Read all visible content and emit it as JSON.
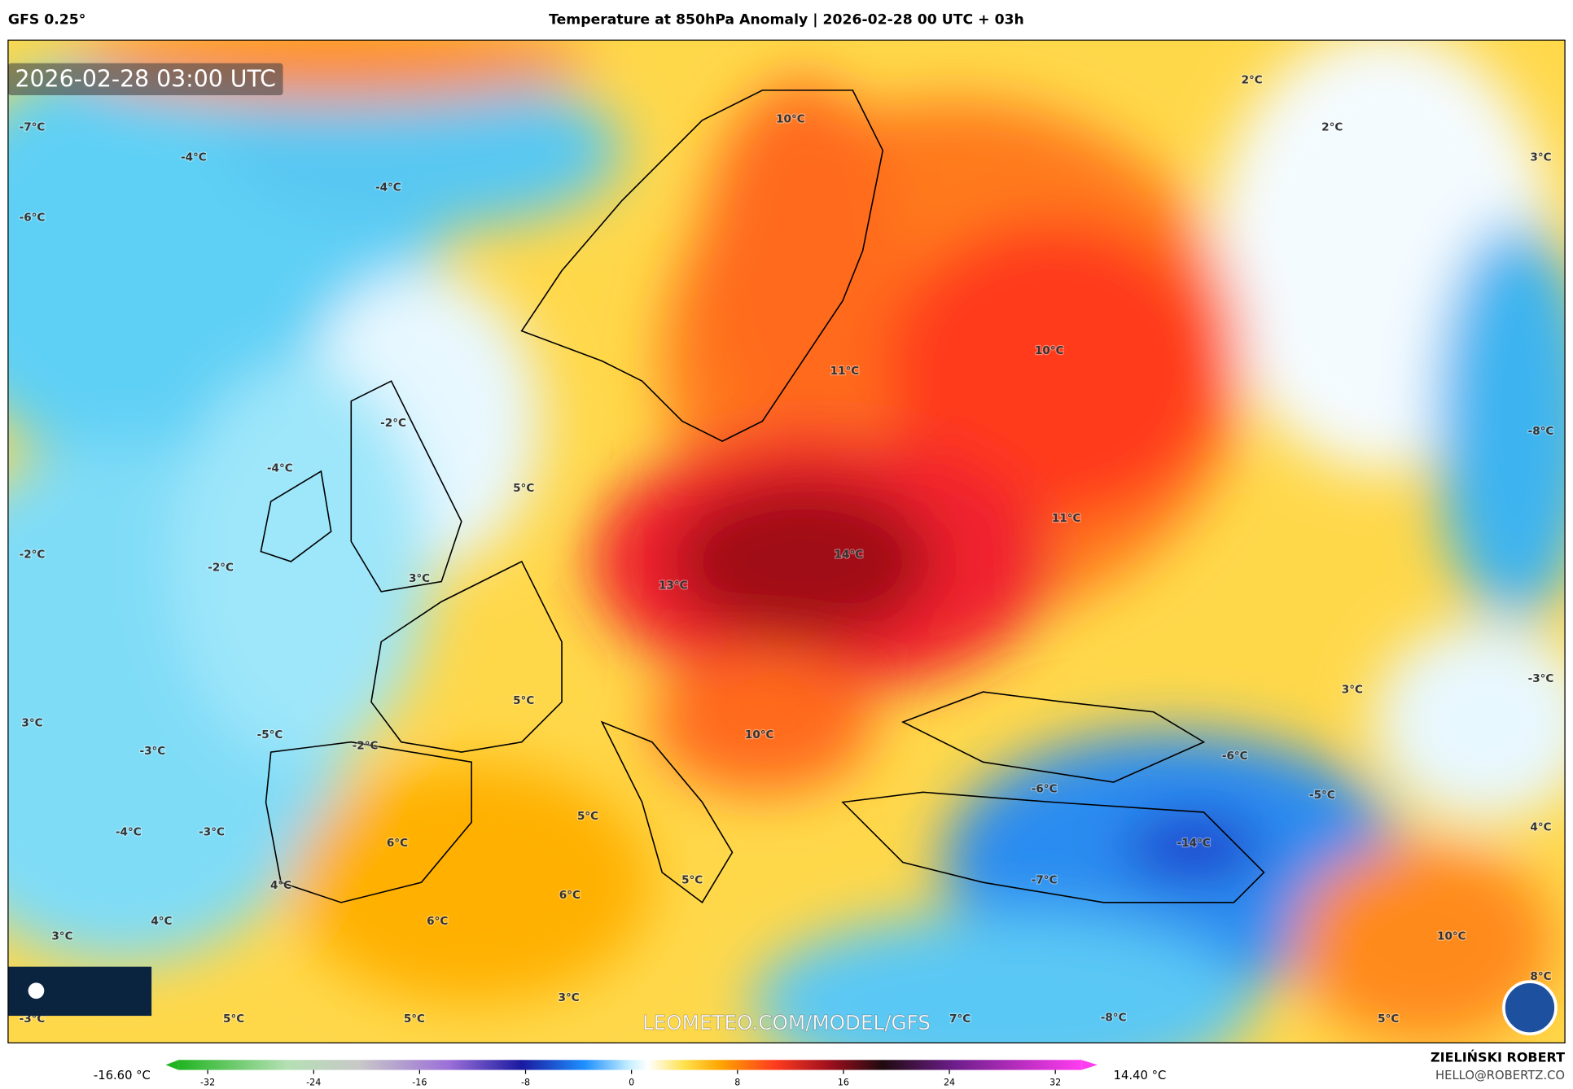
{
  "header": {
    "model": "GFS 0.25°",
    "title": "Temperature at 850hPa Anomaly | 2026-02-28 00 UTC + 03h"
  },
  "map": {
    "timestamp": "2026-02-28 03:00 UTC",
    "watermark": "LEOMETEO.COM/MODEL/GFS",
    "labels": [
      "2°C",
      "2°C",
      "3°C",
      "-7°C",
      "-4°C",
      "-4°C",
      "-6°C",
      "10°C",
      "10°C",
      "11°C",
      "-8°C",
      "-2°C",
      "-4°C",
      "5°C",
      "11°C",
      "-2°C",
      "-2°C",
      "14°C",
      "3°C",
      "13°C",
      "3°C",
      "-3°C",
      "5°C",
      "3°C",
      "-5°C",
      "10°C",
      "-3°C",
      "-2°C",
      "-6°C",
      "-6°C",
      "-5°C",
      "5°C",
      "-4°C",
      "-3°C",
      "6°C",
      "-14°C",
      "4°C",
      "4°C",
      "5°C",
      "-7°C",
      "6°C",
      "4°C",
      "6°C",
      "3°C",
      "10°C",
      "8°C",
      "3°C",
      "-3°C",
      "5°C",
      "5°C",
      "7°C",
      "-8°C",
      "5°C"
    ]
  },
  "colorbar": {
    "min_label": "-16.60 °C",
    "max_label": "14.40 °C",
    "ticks": [
      -32,
      -24,
      -16,
      -8,
      0,
      8,
      16,
      24,
      32
    ]
  },
  "footer": {
    "author": "ZIELIŃSKI ROBERT",
    "contact": "HELLO@ROBERTZ.CO"
  }
}
